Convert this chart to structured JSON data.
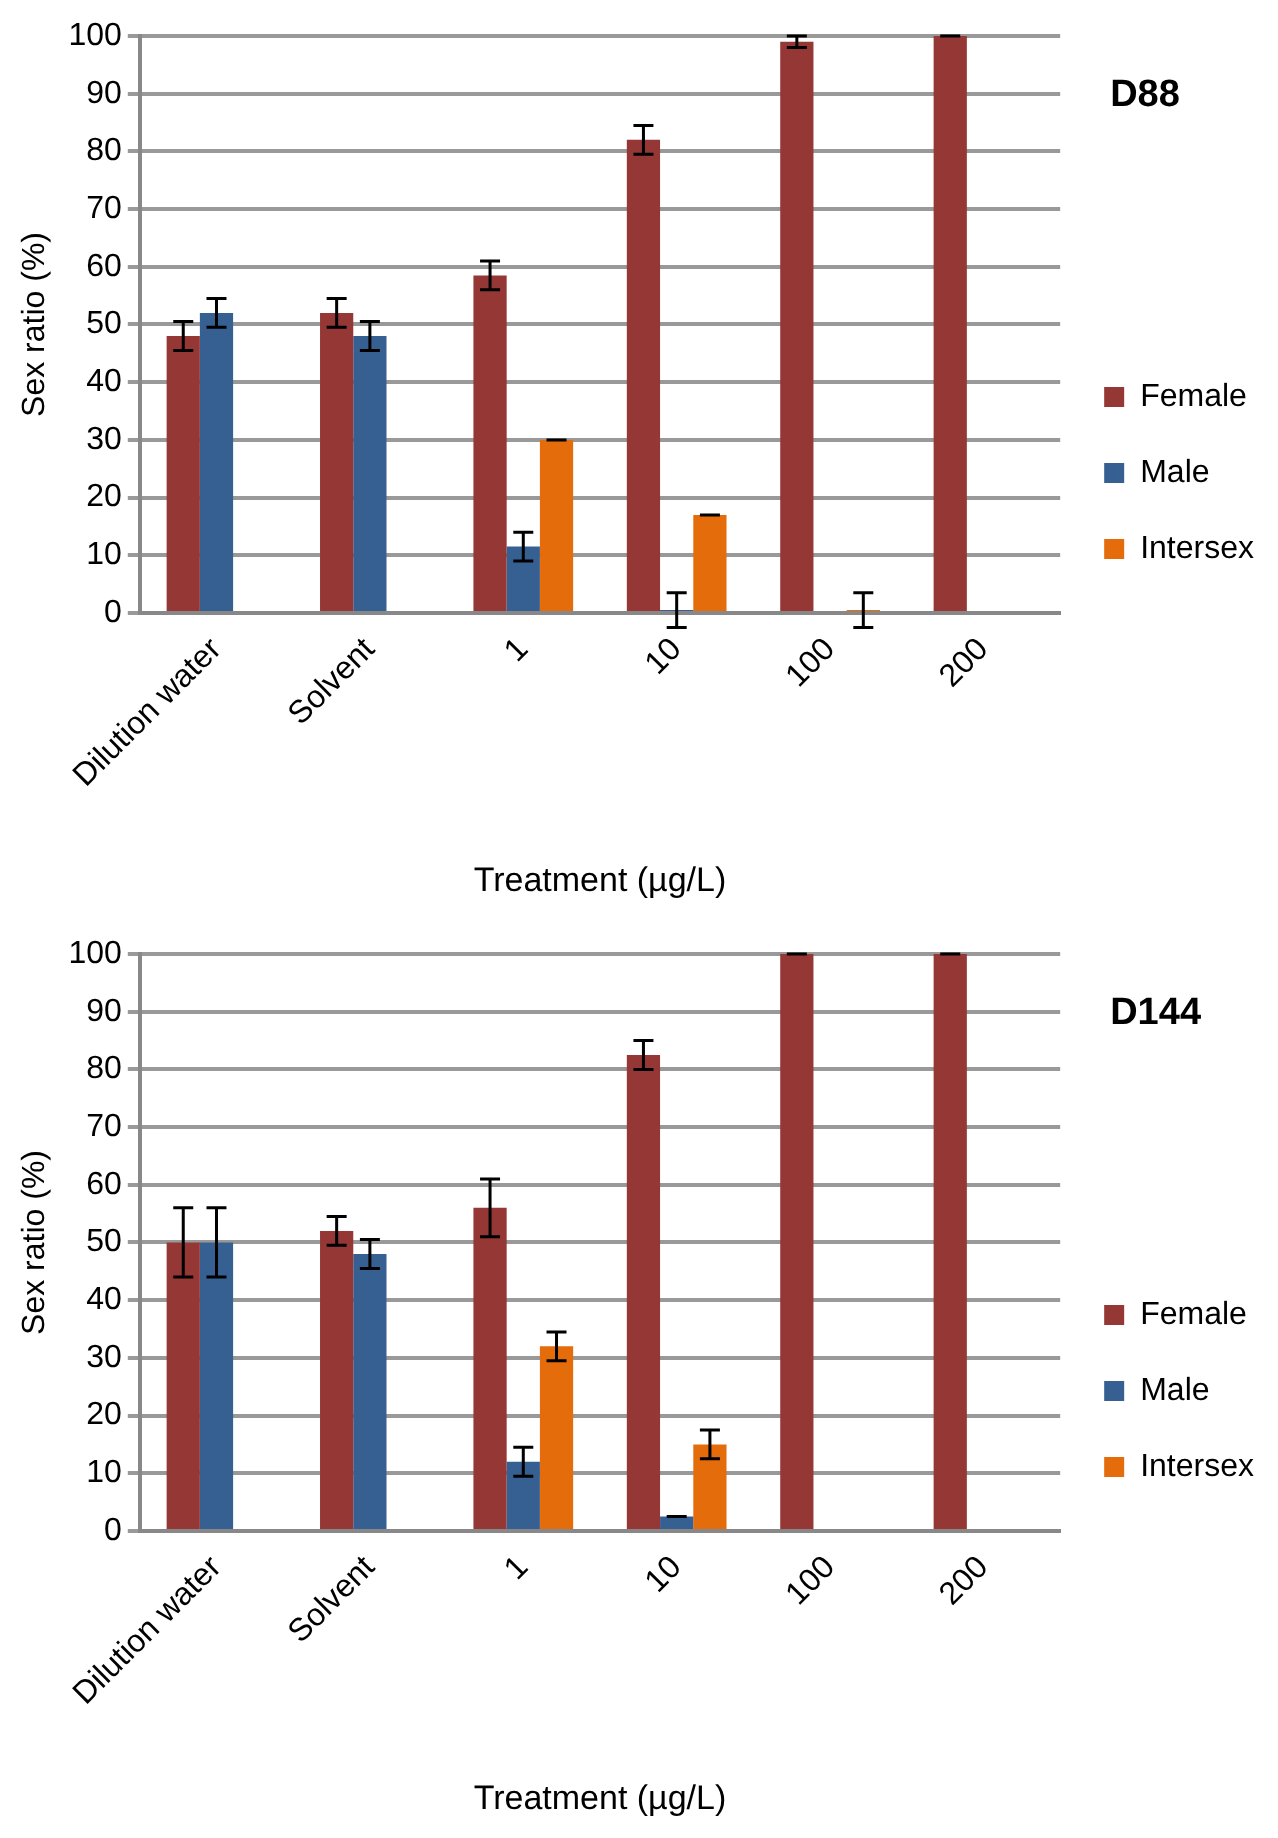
{
  "chart_data": [
    {
      "type": "bar",
      "annotations": [
        "D88"
      ],
      "xlabel": "Treatment (µg/L)",
      "ylabel": "Sex ratio (%)",
      "categories": [
        "Dilution water",
        "Solvent",
        "1",
        "10",
        "100",
        "200"
      ],
      "series": [
        {
          "name": "Female",
          "color": "#953735",
          "values": [
            48,
            52,
            58.5,
            82,
            99,
            100
          ],
          "errors": [
            2.5,
            2.5,
            2.5,
            2.5,
            1,
            0
          ]
        },
        {
          "name": "Male",
          "color": "#376092",
          "values": [
            52,
            48,
            11.5,
            0.5,
            null,
            null
          ],
          "errors": [
            2.5,
            2.5,
            2.5,
            3,
            null,
            null
          ]
        },
        {
          "name": "Intersex",
          "color": "#e46c0a",
          "values": [
            null,
            null,
            30,
            17,
            0.5,
            null
          ],
          "errors": [
            null,
            null,
            0,
            0,
            3,
            null
          ]
        }
      ],
      "ylim": [
        0,
        100
      ],
      "yticks": [
        0,
        10,
        20,
        30,
        40,
        50,
        60,
        70,
        80,
        90,
        100
      ],
      "grid": "y",
      "legend": "right"
    },
    {
      "type": "bar",
      "annotations": [
        "D144"
      ],
      "xlabel": "Treatment (µg/L)",
      "ylabel": "Sex ratio (%)",
      "categories": [
        "Dilution water",
        "Solvent",
        "1",
        "10",
        "100",
        "200"
      ],
      "series": [
        {
          "name": "Female",
          "color": "#953735",
          "values": [
            50,
            52,
            56,
            82.5,
            100,
            100
          ],
          "errors": [
            6,
            2.5,
            5,
            2.5,
            0,
            0
          ]
        },
        {
          "name": "Male",
          "color": "#376092",
          "values": [
            50,
            48,
            12,
            2.5,
            null,
            null
          ],
          "errors": [
            6,
            2.5,
            2.5,
            0,
            null,
            null
          ]
        },
        {
          "name": "Intersex",
          "color": "#e46c0a",
          "values": [
            null,
            null,
            32,
            15,
            null,
            null
          ],
          "errors": [
            null,
            null,
            2.5,
            2.5,
            null,
            null
          ]
        }
      ],
      "ylim": [
        0,
        100
      ],
      "yticks": [
        0,
        10,
        20,
        30,
        40,
        50,
        60,
        70,
        80,
        90,
        100
      ],
      "grid": "y",
      "legend": "right"
    }
  ]
}
